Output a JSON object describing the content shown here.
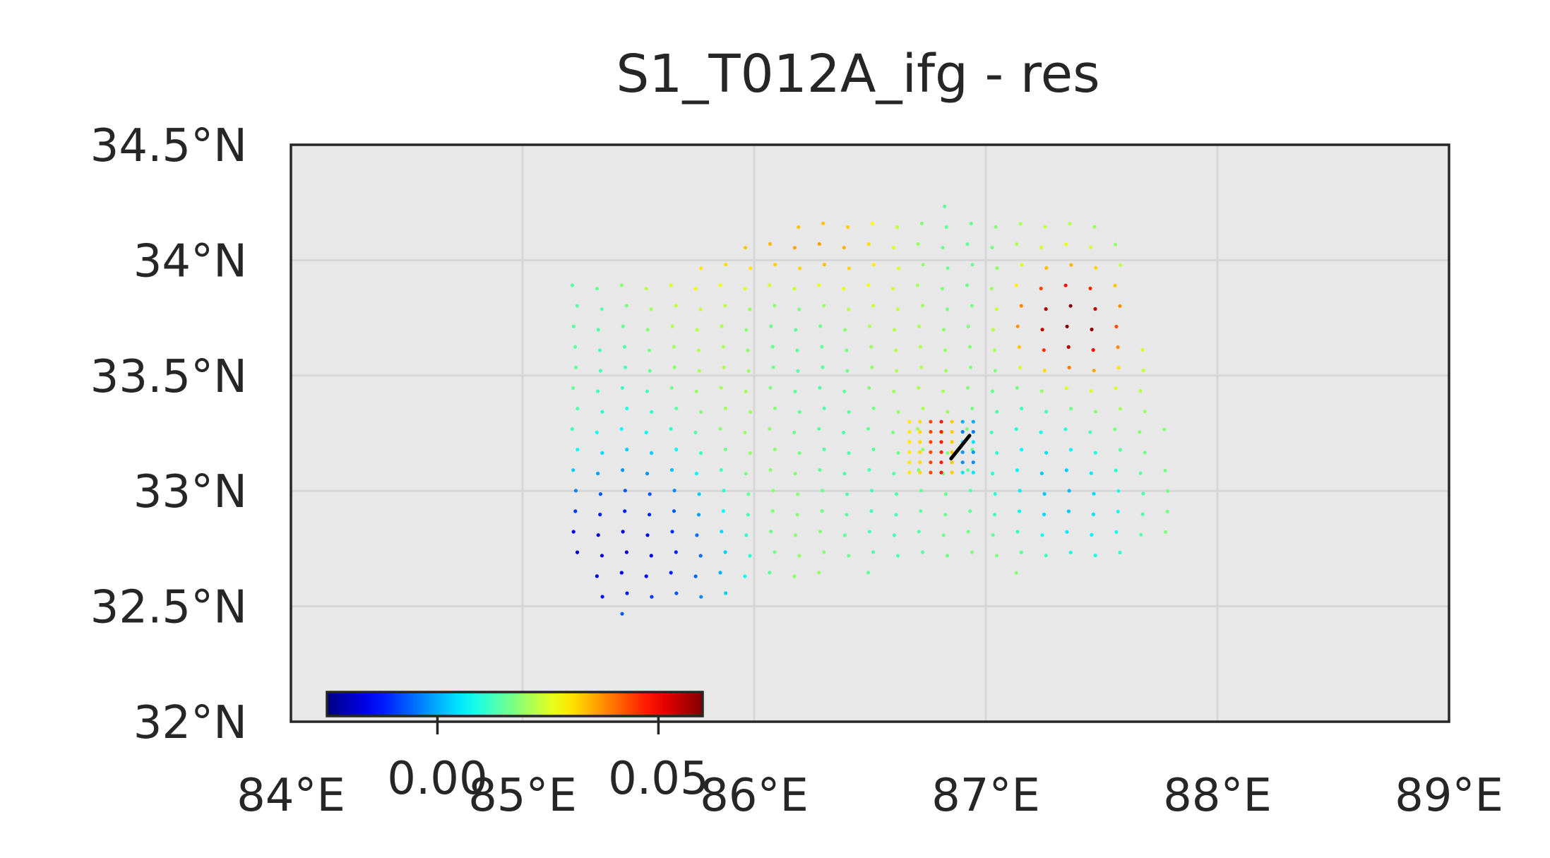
{
  "chart_data": {
    "type": "scatter",
    "title": "S1_T012A_ifg - res",
    "xlabel": "",
    "ylabel": "",
    "xlim": [
      84,
      89
    ],
    "ylim": [
      32,
      34.5
    ],
    "x_tick_labels": [
      "84°E",
      "85°E",
      "86°E",
      "87°E",
      "88°E",
      "89°E"
    ],
    "x_ticks": [
      84,
      85,
      86,
      87,
      88,
      89
    ],
    "y_tick_labels": [
      "32°N",
      "32.5°N",
      "33°N",
      "33.5°N",
      "34°N",
      "34.5°N"
    ],
    "y_ticks": [
      32,
      32.5,
      33,
      33.5,
      34,
      34.5
    ],
    "grid": true,
    "background_color": "#e8e8e8",
    "grid_color": "#d6d6d6",
    "colormap": "jet",
    "colorbar": {
      "placement": "lower-left inset",
      "range": [
        -0.025,
        0.06
      ],
      "tick_values": [
        0.0,
        0.05
      ],
      "tick_labels": [
        "0.00",
        "0.05"
      ]
    },
    "fault_trace": [
      [
        86.85,
        33.14
      ],
      [
        86.93,
        33.24
      ]
    ],
    "value_field": {
      "base": 0.018,
      "west_gradient": {
        "lon": 85.3,
        "lat": 32.7,
        "amp": -0.04,
        "sigma_lon": 0.55,
        "sigma_lat": 0.45
      },
      "east_high": {
        "lon": 87.35,
        "lat": 33.73,
        "amp": 0.045,
        "sigma_lon": 0.25,
        "sigma_lat": 0.22
      },
      "north_high": {
        "lon": 86.1,
        "lat": 34.05,
        "amp": 0.02,
        "sigma_lon": 0.45,
        "sigma_lat": 0.2
      },
      "southeast_low": {
        "lon": 87.3,
        "lat": 33.0,
        "amp": -0.013,
        "sigma_lon": 0.5,
        "sigma_lat": 0.3
      }
    }
  }
}
